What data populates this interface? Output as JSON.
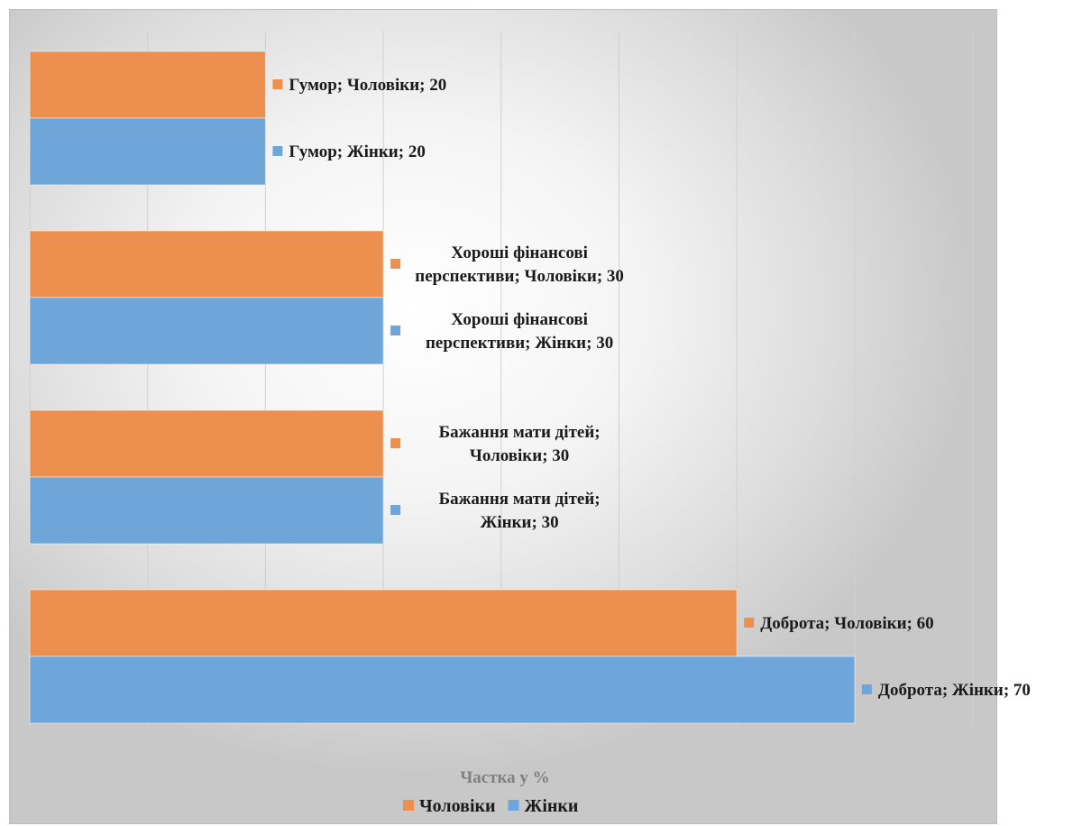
{
  "chart_data": {
    "type": "bar",
    "orientation": "horizontal",
    "categories": [
      "Доброта",
      "Бажання мати дітей",
      "Хороші фінансові перспективи",
      "Гумор"
    ],
    "series": [
      {
        "name": "Чоловіки",
        "color": "#ed8f4f",
        "values": [
          60,
          30,
          30,
          20
        ]
      },
      {
        "name": "Жінки",
        "color": "#6fa6da",
        "values": [
          70,
          30,
          30,
          20
        ]
      }
    ],
    "data_labels": [
      {
        "series": "Жінки",
        "category": "Доброта",
        "lines": [
          "Доброта; Жінки; 70"
        ]
      },
      {
        "series": "Чоловіки",
        "category": "Доброта",
        "lines": [
          "Доброта; Чоловіки; 60"
        ]
      },
      {
        "series": "Жінки",
        "category": "Бажання мати дітей",
        "lines": [
          "Бажання мати дітей;",
          "Жінки; 30"
        ]
      },
      {
        "series": "Чоловіки",
        "category": "Бажання мати дітей",
        "lines": [
          "Бажання мати дітей;",
          "Чоловіки; 30"
        ]
      },
      {
        "series": "Жінки",
        "category": "Хороші фінансові перспективи",
        "lines": [
          "Хороші фінансові",
          "перспективи; Жінки; 30"
        ]
      },
      {
        "series": "Чоловіки",
        "category": "Хороші фінансові перспективи",
        "lines": [
          "Хороші фінансові",
          "перспективи; Чоловіки; 30"
        ]
      },
      {
        "series": "Жінки",
        "category": "Гумор",
        "lines": [
          "Гумор; Жінки; 20"
        ]
      },
      {
        "series": "Чоловіки",
        "category": "Гумор",
        "lines": [
          "Гумор; Чоловіки; 20"
        ]
      }
    ],
    "title": "",
    "xlabel": "Частка у %",
    "ylabel": "",
    "xlim": [
      0,
      80
    ],
    "x_gridline_step": 10,
    "grid": true,
    "legend": "bottom"
  }
}
